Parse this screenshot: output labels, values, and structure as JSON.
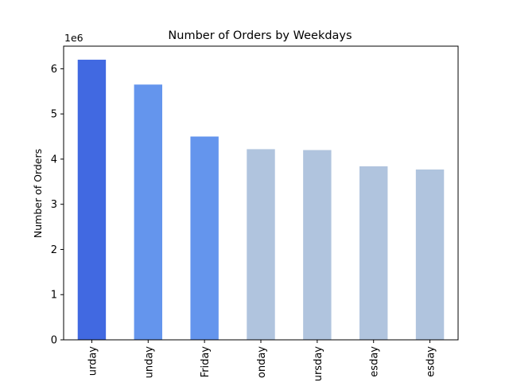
{
  "chart_data": {
    "type": "bar",
    "title": "Number of Orders by Weekdays",
    "xlabel": "",
    "ylabel": "Number of Orders",
    "y_offset_label": "1e6",
    "ylim": [
      0,
      6.5
    ],
    "y_ticks": [
      0,
      1,
      2,
      3,
      4,
      5,
      6
    ],
    "y_tick_labels": [
      "0",
      "1",
      "2",
      "3",
      "4",
      "5",
      "6"
    ],
    "categories": [
      "Saturday",
      "Sunday",
      "Friday",
      "Monday",
      "Thursday",
      "Wednesday",
      "Tuesday"
    ],
    "tick_labels_visible": [
      "urday",
      "unday",
      "Friday",
      "onday",
      "ursday",
      "esday",
      "esday"
    ],
    "values": [
      6.2,
      5.65,
      4.5,
      4.22,
      4.2,
      3.84,
      3.77
    ],
    "value_unit_multiplier": 1000000,
    "bar_colors": [
      "#4169E1",
      "#6495ED",
      "#6495ED",
      "#B0C4DE",
      "#B0C4DE",
      "#B0C4DE",
      "#B0C4DE"
    ],
    "grid": false,
    "legend": "none"
  }
}
